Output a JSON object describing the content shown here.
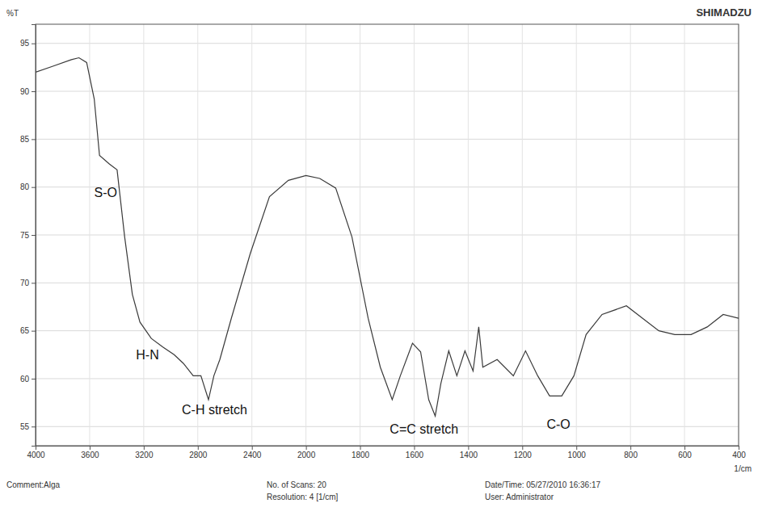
{
  "chart_data": {
    "type": "line",
    "brand": "SHIMADZU",
    "ylabel": "%T",
    "xlabel": "1/cm",
    "x": [
      4000,
      3876,
      3735,
      3679,
      3622,
      3566,
      3527,
      3453,
      3397,
      3341,
      3284,
      3228,
      3144,
      3059,
      2975,
      2907,
      2834,
      2777,
      2721,
      2681,
      2637,
      2552,
      2411,
      2270,
      2130,
      2000,
      1949,
      1890,
      1830,
      1770,
      1725,
      1681,
      1651,
      1606,
      1576,
      1546,
      1522,
      1501,
      1472,
      1442,
      1412,
      1382,
      1361,
      1346,
      1293,
      1233,
      1188,
      1143,
      1099,
      1054,
      1009,
      964,
      905,
      815,
      755,
      695,
      636,
      576,
      516,
      457,
      400
    ],
    "values": [
      92.0,
      92.6,
      93.3,
      93.5,
      93.0,
      89.2,
      83.3,
      82.4,
      81.8,
      74.8,
      68.8,
      65.9,
      64.2,
      63.3,
      62.5,
      61.6,
      60.3,
      60.3,
      57.8,
      60.3,
      62.0,
      66.3,
      73.1,
      79.0,
      80.7,
      81.2,
      80.9,
      79.9,
      74.8,
      66.3,
      61.2,
      57.8,
      60.3,
      63.7,
      62.8,
      57.8,
      56.1,
      59.5,
      62.9,
      60.3,
      62.9,
      60.8,
      65.4,
      61.2,
      62.0,
      60.3,
      62.9,
      60.3,
      58.2,
      58.2,
      60.3,
      64.6,
      66.7,
      67.6,
      66.3,
      65.0,
      64.6,
      64.6,
      65.4,
      66.7,
      66.3
    ],
    "color": "#3a3a3a",
    "xlim": [
      4000,
      400
    ],
    "xticks": [
      4000,
      3600,
      3200,
      2800,
      2400,
      2000,
      1800,
      1600,
      1400,
      1200,
      1000,
      800,
      600,
      400
    ],
    "ylim": [
      53,
      97
    ],
    "yticks": [
      55,
      60,
      65,
      70,
      75,
      80,
      85,
      90,
      95
    ],
    "grid": true,
    "annotations": [
      {
        "text": "S-O",
        "x": 3566,
        "y": 79
      },
      {
        "text": "H-N",
        "x": 3257,
        "y": 62
      },
      {
        "text": "C-H stretch",
        "x": 2918,
        "y": 56.3
      },
      {
        "text": "C=C stretch",
        "x": 1690,
        "y": 54.3
      },
      {
        "text": "C-O",
        "x": 1110,
        "y": 54.8
      }
    ],
    "footer": [
      [
        "Comment:Alga"
      ],
      [
        "No. of Scans: 20",
        "Resolution: 4 [1/cm]"
      ],
      [
        "Date/Time: 05/27/2010 16:36:17",
        "User: Administrator"
      ]
    ]
  }
}
